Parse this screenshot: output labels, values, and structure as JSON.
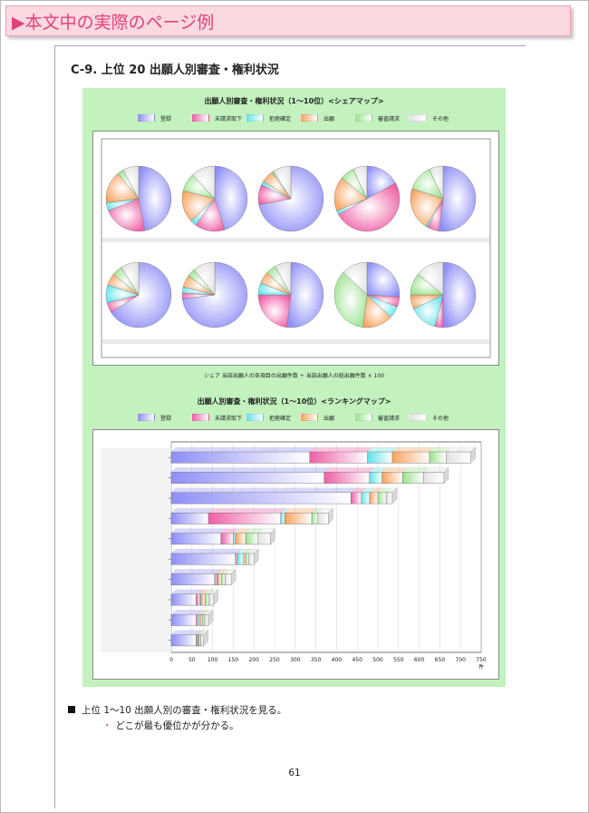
{
  "banner": {
    "title": "▶本文中の実際のページ例"
  },
  "section": {
    "title": "C-9.  上位 20 出願人別審査・権利状況"
  },
  "legend": {
    "items": [
      {
        "label": "登録",
        "color": "#8f8ff7"
      },
      {
        "label": "未請求取下",
        "color": "#ef5fa6"
      },
      {
        "label": "拒絶確定",
        "color": "#5fe3ea"
      },
      {
        "label": "出願",
        "color": "#f7a35e"
      },
      {
        "label": "審査請求",
        "color": "#9be38f"
      },
      {
        "label": "その他",
        "color": "#e2e2e2"
      }
    ]
  },
  "chart_data": [
    {
      "type": "pie",
      "title": "出願人別審査・権利状況（1～10位）<シェアマップ>",
      "series_names": [
        "登録",
        "未請求取下",
        "拒絶確定",
        "出願",
        "審査請求",
        "その他"
      ],
      "pies": [
        [
          47,
          22,
          4,
          16,
          3,
          8
        ],
        [
          45,
          15,
          3,
          16,
          9,
          12
        ],
        [
          72,
          10,
          2,
          6,
          1,
          9
        ],
        [
          17,
          50,
          2,
          17,
          7,
          7
        ],
        [
          52,
          6,
          1,
          21,
          13,
          7
        ],
        [
          66,
          5,
          9,
          6,
          5,
          9
        ],
        [
          73,
          3,
          3,
          6,
          4,
          11
        ],
        [
          52,
          23,
          6,
          6,
          5,
          8
        ],
        [
          26,
          5,
          6,
          15,
          35,
          13
        ],
        [
          50,
          4,
          14,
          7,
          11,
          14
        ]
      ],
      "footnote": "シェア  当該出願人の各項目の出願件数 ÷ 当該出願人の総出願件数 × 100"
    },
    {
      "type": "bar",
      "title": "出願人別審査・権利状況（1～10位）<ランキングマップ>",
      "orientation": "horizontal",
      "stacked": true,
      "series": [
        {
          "name": "登録",
          "values": [
            335,
            370,
            435,
            90,
            120,
            155,
            105,
            60,
            60,
            60
          ]
        },
        {
          "name": "未請求取下",
          "values": [
            140,
            110,
            25,
            175,
            30,
            5,
            5,
            10,
            5,
            2
          ]
        },
        {
          "name": "拒絶確定",
          "values": [
            60,
            30,
            20,
            10,
            5,
            15,
            2,
            2,
            5,
            2
          ]
        },
        {
          "name": "出願",
          "values": [
            90,
            50,
            20,
            65,
            25,
            5,
            10,
            10,
            6,
            3
          ]
        },
        {
          "name": "審査請求",
          "values": [
            40,
            50,
            20,
            15,
            30,
            8,
            8,
            10,
            5,
            4
          ]
        },
        {
          "name": "その他",
          "values": [
            60,
            50,
            15,
            25,
            30,
            12,
            15,
            10,
            9,
            7
          ]
        }
      ],
      "xlim": [
        0,
        750
      ],
      "xticks": [
        0,
        50,
        100,
        150,
        200,
        250,
        300,
        350,
        400,
        450,
        500,
        550,
        600,
        650,
        700,
        750
      ],
      "xlabel": "件",
      "grid": true
    }
  ],
  "bullets": {
    "main": "上位 1～10 出願人別の審査・権利状況を見る。",
    "sub": "どこが最も優位かが分かる。",
    "sub_marker": "・"
  },
  "page_number": "61"
}
